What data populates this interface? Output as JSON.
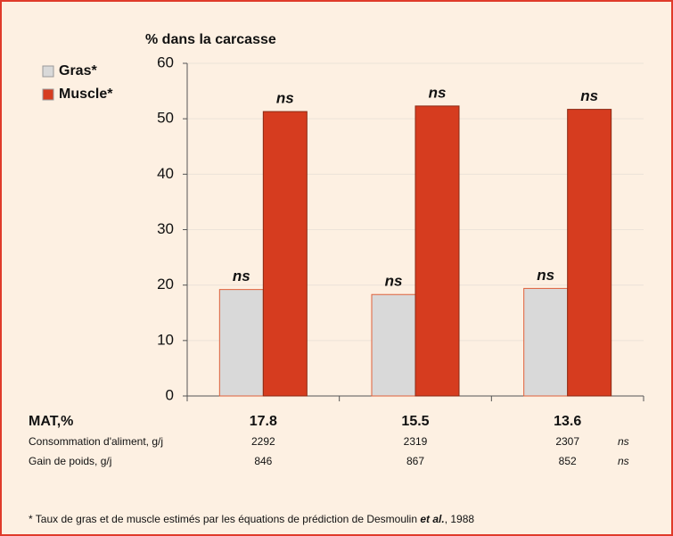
{
  "chart_data": {
    "type": "bar",
    "title": "% dans la carcasse",
    "categories": [
      "17.8",
      "15.5",
      "13.6"
    ],
    "series": [
      {
        "name": "Gras*",
        "color": "#d9d9d9",
        "values": [
          19.2,
          18.3,
          19.4
        ],
        "significance": [
          "ns",
          "ns",
          "ns"
        ]
      },
      {
        "name": "Muscle*",
        "color": "#d63c1f",
        "values": [
          51.3,
          52.3,
          51.7
        ],
        "significance": [
          "ns",
          "ns",
          "ns"
        ]
      }
    ],
    "ylim": [
      0,
      60
    ],
    "yticks": [
      0,
      10,
      20,
      30,
      40,
      50,
      60
    ],
    "grid": true,
    "legend": "upper left",
    "table": {
      "header": "MAT,%",
      "rows": [
        {
          "label": "Consommation d'aliment, g/j",
          "values": [
            2292,
            2319,
            2307
          ],
          "significance": "ns"
        },
        {
          "label": "Gain de poids, g/j",
          "values": [
            846,
            867,
            852
          ],
          "significance": "ns"
        }
      ]
    },
    "footnote": {
      "before": "* Taux de gras et de muscle estimés par les équations de prédiction de Desmoulin ",
      "italic": "et al.",
      "after": ", 1988"
    }
  }
}
